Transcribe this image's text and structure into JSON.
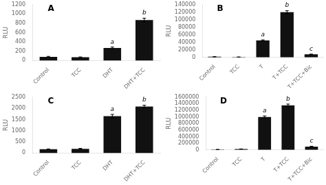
{
  "chart_data": [
    {
      "type": "bar",
      "title": "A",
      "categories": [
        "Control",
        "TCC",
        "DHT",
        "DHT+TCC"
      ],
      "values": [
        80,
        70,
        270,
        870
      ],
      "errors": [
        10,
        8,
        20,
        40
      ],
      "color": "#111111",
      "ylabel": "RLU",
      "ylim": [
        0,
        1200
      ],
      "yticks": [
        0,
        200,
        400,
        600,
        800,
        1000,
        1200
      ],
      "annotations": [
        {
          "x": "DHT",
          "text": "a"
        },
        {
          "x": "DHT+TCC",
          "text": "b"
        }
      ],
      "grid": false
    },
    {
      "type": "bar",
      "title": "B",
      "categories": [
        "Control",
        "TCC",
        "T",
        "T+TCC",
        "T+TCC+Bic"
      ],
      "values": [
        1500,
        800,
        45000,
        120000,
        8000
      ],
      "errors": [
        300,
        200,
        1500,
        4000,
        600
      ],
      "color": "#111111",
      "ylabel": "RLU",
      "ylim": [
        0,
        140000
      ],
      "yticks": [
        0,
        20000,
        40000,
        60000,
        80000,
        100000,
        120000,
        140000
      ],
      "annotations": [
        {
          "x": "T",
          "text": "a"
        },
        {
          "x": "T+TCC",
          "text": "b"
        },
        {
          "x": "T+TCC+Bic",
          "text": "c"
        }
      ],
      "grid": false
    },
    {
      "type": "bar",
      "title": "C",
      "categories": [
        "Control",
        "TCC",
        "DHT",
        "DHT+TCC"
      ],
      "values": [
        170,
        190,
        1650,
        2080
      ],
      "errors": [
        15,
        20,
        80,
        60
      ],
      "color": "#111111",
      "ylabel": "RLU",
      "ylim": [
        0,
        2500
      ],
      "yticks": [
        0,
        500,
        1000,
        1500,
        2000,
        2500
      ],
      "annotations": [
        {
          "x": "DHT",
          "text": "a"
        },
        {
          "x": "DHT+TCC",
          "text": "b"
        }
      ],
      "grid": false
    },
    {
      "type": "bar",
      "title": "D",
      "categories": [
        "Control",
        "TCC",
        "T",
        "T+TCC",
        "T+TCC+Bic"
      ],
      "values": [
        10000,
        25000,
        1000000,
        1350000,
        100000
      ],
      "errors": [
        2000,
        3000,
        30000,
        40000,
        10000
      ],
      "color": "#111111",
      "ylabel": "RLU",
      "ylim": [
        0,
        1600000
      ],
      "yticks": [
        0,
        200000,
        400000,
        600000,
        800000,
        1000000,
        1200000,
        1400000,
        1600000
      ],
      "annotations": [
        {
          "x": "T",
          "text": "a"
        },
        {
          "x": "T+TCC",
          "text": "b"
        },
        {
          "x": "T+TCC+Bic",
          "text": "c"
        }
      ],
      "grid": false
    }
  ]
}
